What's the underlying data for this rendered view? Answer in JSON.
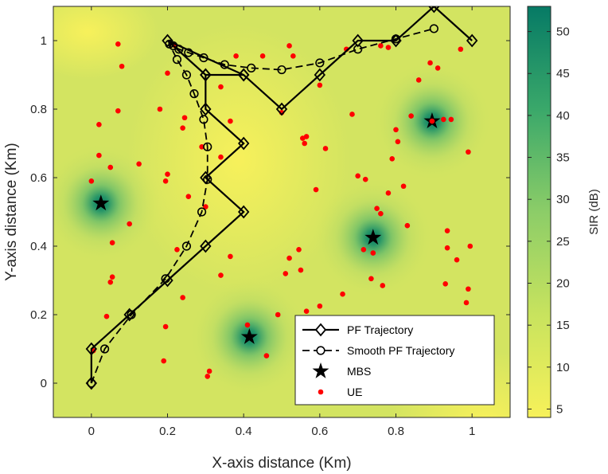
{
  "chart_data": {
    "type": "line",
    "xlabel": "X-axis distance (Km)",
    "ylabel": "Y-axis distance (Km)",
    "xlim": [
      -0.1,
      1.1
    ],
    "ylim": [
      -0.1,
      1.1
    ],
    "xticks": [
      "0",
      "0.2",
      "0.4",
      "0.6",
      "0.8",
      "1"
    ],
    "yticks": [
      "0",
      "0.2",
      "0.4",
      "0.6",
      "0.8",
      "1"
    ],
    "colorbar": {
      "label": "SIR (dB)",
      "range": [
        4,
        53
      ],
      "ticks": [
        "5",
        "10",
        "15",
        "20",
        "25",
        "30",
        "35",
        "40",
        "45",
        "50"
      ],
      "low_color": "#f5ef5a",
      "high_color": "#067a65"
    },
    "heatmap_peaks": [
      {
        "x": 0.025,
        "y": 0.525,
        "value": 52
      },
      {
        "x": 0.415,
        "y": 0.135,
        "value": 52
      },
      {
        "x": 0.74,
        "y": 0.425,
        "value": 52
      },
      {
        "x": 0.895,
        "y": 0.765,
        "value": 52
      }
    ],
    "series": [
      {
        "name": "PF Trajectory",
        "style": "solid",
        "marker": "diamond",
        "color": "#000000",
        "x": [
          0,
          0,
          0.1,
          0.2,
          0.3,
          0.4,
          0.3,
          0.4,
          0.3,
          0.3,
          0.4,
          0.3,
          0.2,
          0.4,
          0.5,
          0.6,
          0.7,
          0.8,
          0.9,
          1.0
        ],
        "y": [
          0,
          0.1,
          0.2,
          0.3,
          0.4,
          0.5,
          0.6,
          0.7,
          0.8,
          0.9,
          0.9,
          0.9,
          1.0,
          0.9,
          0.8,
          0.9,
          1.0,
          1.0,
          1.1,
          1.0
        ]
      },
      {
        "name": "Smooth PF Trajectory",
        "style": "dashed",
        "marker": "circle",
        "color": "#000000",
        "x": [
          0,
          0.035,
          0.105,
          0.195,
          0.25,
          0.29,
          0.305,
          0.305,
          0.295,
          0.27,
          0.25,
          0.225,
          0.205,
          0.215,
          0.23,
          0.255,
          0.295,
          0.35,
          0.42,
          0.5,
          0.6,
          0.7,
          0.8,
          0.9
        ],
        "y": [
          0,
          0.1,
          0.2,
          0.305,
          0.4,
          0.5,
          0.595,
          0.69,
          0.77,
          0.845,
          0.9,
          0.945,
          0.99,
          0.985,
          0.975,
          0.965,
          0.95,
          0.93,
          0.92,
          0.915,
          0.935,
          0.975,
          1.005,
          1.035
        ]
      },
      {
        "name": "MBS",
        "marker": "star",
        "color": "#000000",
        "x": [
          0.025,
          0.415,
          0.74,
          0.895
        ],
        "y": [
          0.525,
          0.135,
          0.425,
          0.765
        ]
      },
      {
        "name": "UE",
        "marker": "dot",
        "color": "#ff0000",
        "x": [
          0.07,
          0.08,
          0.02,
          0.07,
          0.02,
          0.05,
          0.125,
          0.0,
          0.055,
          0.1,
          0.055,
          0.05,
          0.04,
          0.005,
          0.2,
          0.22,
          0.18,
          0.24,
          0.245,
          0.2,
          0.195,
          0.255,
          0.3,
          0.34,
          0.34,
          0.225,
          0.365,
          0.34,
          0.29,
          0.24,
          0.195,
          0.31,
          0.305,
          0.19,
          0.38,
          0.365,
          0.41,
          0.45,
          0.5,
          0.52,
          0.53,
          0.565,
          0.555,
          0.56,
          0.6,
          0.615,
          0.59,
          0.545,
          0.52,
          0.51,
          0.55,
          0.565,
          0.6,
          0.66,
          0.685,
          0.7,
          0.67,
          0.72,
          0.75,
          0.715,
          0.74,
          0.765,
          0.76,
          0.8,
          0.86,
          0.89,
          0.91,
          0.945,
          0.925,
          0.935,
          0.935,
          0.79,
          0.805,
          0.84,
          0.83,
          0.78,
          0.82,
          0.93,
          0.99,
          0.96,
          0.99,
          0.995,
          0.985,
          0.735,
          0.97,
          0.78,
          0.76,
          0.49,
          0.46
        ],
        "y": [
          0.99,
          0.925,
          0.755,
          0.795,
          0.665,
          0.63,
          0.64,
          0.59,
          0.41,
          0.465,
          0.31,
          0.295,
          0.195,
          0.095,
          0.905,
          0.985,
          0.8,
          0.745,
          0.775,
          0.61,
          0.59,
          0.545,
          0.515,
          0.66,
          0.865,
          0.39,
          0.37,
          0.315,
          0.69,
          0.25,
          0.165,
          0.035,
          0.02,
          0.065,
          0.955,
          0.765,
          0.17,
          0.955,
          0.79,
          0.985,
          0.955,
          0.72,
          0.715,
          0.7,
          0.87,
          0.685,
          0.565,
          0.39,
          0.365,
          0.32,
          0.33,
          0.21,
          0.225,
          0.26,
          0.785,
          0.605,
          0.975,
          0.595,
          0.51,
          0.39,
          0.38,
          0.285,
          0.495,
          0.74,
          0.885,
          0.935,
          0.92,
          0.77,
          0.77,
          0.445,
          0.395,
          0.655,
          0.705,
          0.78,
          0.46,
          0.555,
          0.575,
          0.29,
          0.675,
          0.36,
          0.275,
          0.4,
          0.235,
          0.305,
          0.975,
          0.98,
          0.985,
          0.2,
          0.08
        ]
      }
    ],
    "legend": {
      "location": "bottom-center",
      "entries": [
        "PF Trajectory",
        "Smooth PF Trajectory",
        "MBS",
        "UE"
      ]
    }
  }
}
